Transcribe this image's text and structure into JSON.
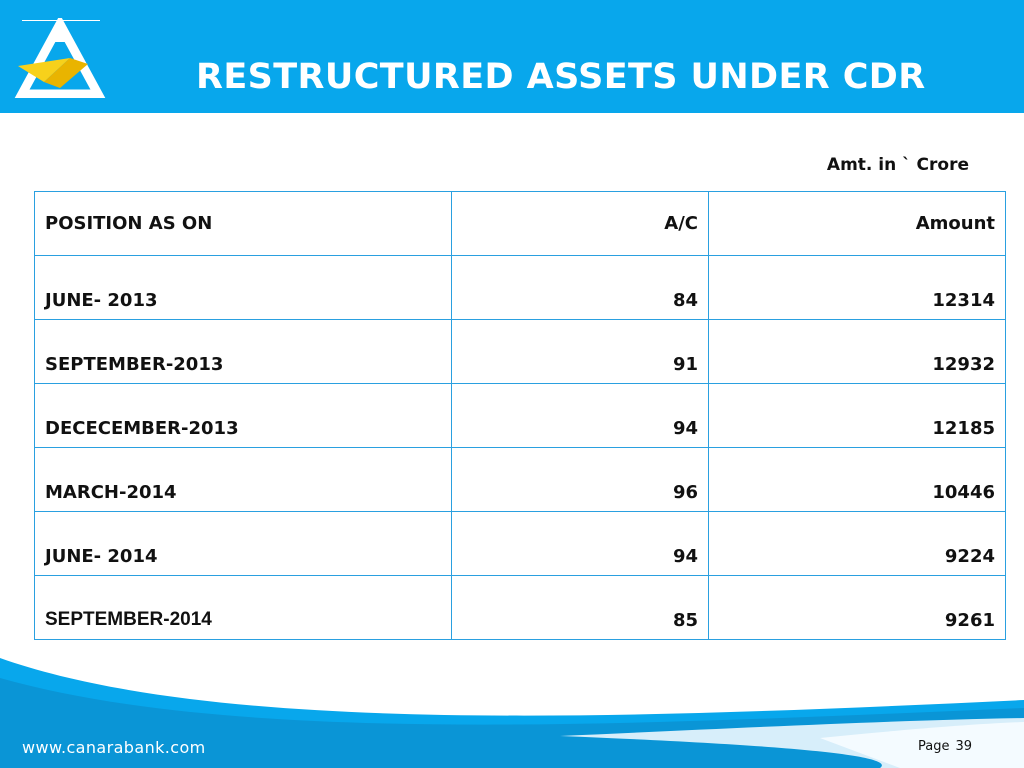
{
  "header": {
    "title": "RESTRUCTURED ASSETS UNDER CDR",
    "bg_color": "#08a7ec",
    "logo_icon": "canara-bank-logo-icon"
  },
  "unit_note": "Amt. in ` Crore",
  "table": {
    "columns": [
      "POSITION AS ON",
      "A/C",
      "Amount"
    ],
    "rows": [
      {
        "position": "JUNE- 2013",
        "ac": "84",
        "amount": "12314"
      },
      {
        "position": "SEPTEMBER-2013",
        "ac": "91",
        "amount": "12932"
      },
      {
        "position": "DECECEMBER-2013",
        "ac": "94",
        "amount": "12185"
      },
      {
        "position": "MARCH-2014",
        "ac": "96",
        "amount": "10446"
      },
      {
        "position": "JUNE- 2014",
        "ac": "94",
        "amount": "9224"
      },
      {
        "position": "SEPTEMBER-2014",
        "ac": "85",
        "amount": "9261"
      }
    ],
    "border_color": "#2aa0e0"
  },
  "footer": {
    "website": "www.canarabank.com",
    "page_label": "Page",
    "page_number": "39"
  }
}
